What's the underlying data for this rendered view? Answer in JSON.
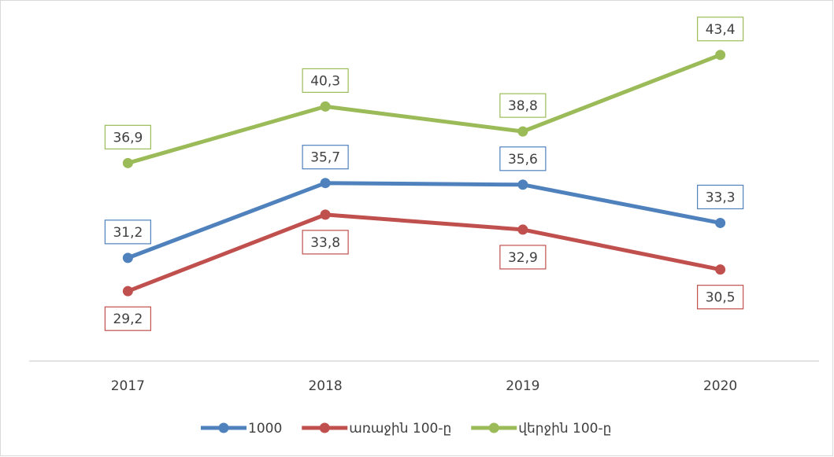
{
  "chart_data": {
    "type": "line",
    "categories": [
      "2017",
      "2018",
      "2019",
      "2020"
    ],
    "series": [
      {
        "name": "1000",
        "color": "#4f81bd",
        "label_position": "above",
        "values": [
          31.2,
          35.7,
          35.6,
          33.3
        ],
        "value_labels": [
          "31,2",
          "35,7",
          "35,6",
          "33,3"
        ]
      },
      {
        "name": "առաջին 100-ը",
        "color": "#c0504d",
        "label_position": "below",
        "values": [
          29.2,
          33.8,
          32.9,
          30.5
        ],
        "value_labels": [
          "29,2",
          "33,8",
          "32,9",
          "30,5"
        ]
      },
      {
        "name": "վերջին 100-ը",
        "color": "#9bbb59",
        "label_position": "above",
        "values": [
          36.9,
          40.3,
          38.8,
          43.4
        ],
        "value_labels": [
          "36,9",
          "40,3",
          "38,8",
          "43,4"
        ]
      }
    ],
    "ylim": [
      25,
      45
    ],
    "legend": "bottom"
  }
}
